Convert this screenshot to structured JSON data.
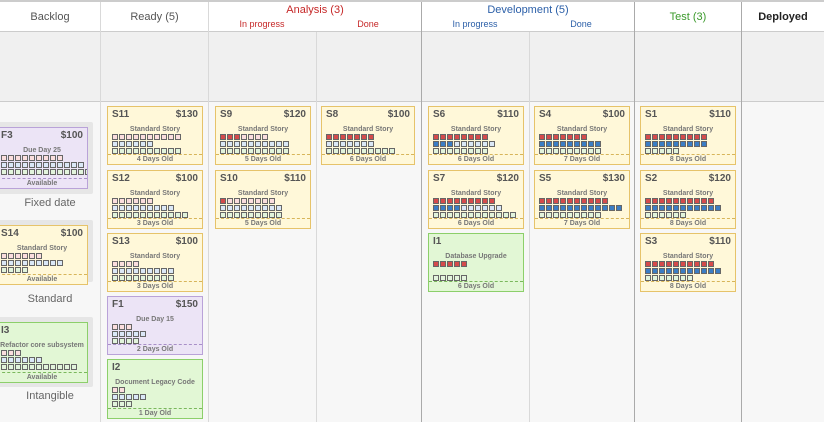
{
  "columns": {
    "backlog": "Backlog",
    "ready": "Ready (5)",
    "analysis": {
      "title": "Analysis (3)",
      "sub": [
        "In progress",
        "Done"
      ]
    },
    "development": {
      "title": "Development (5)",
      "sub": [
        "In progress",
        "Done"
      ]
    },
    "test": "Test (3)",
    "deployed": "Deployed"
  },
  "backlog_groups": [
    "Fixed date",
    "Standard",
    "Intangible"
  ],
  "colors": {
    "analysis": "#c62828",
    "development": "#2b5fa8",
    "test": "#3a9a2a",
    "red": "#d54b4b",
    "blue": "#3b7dc4",
    "green": "#5aac48"
  },
  "cards": {
    "F3": {
      "id": "F3",
      "price": "$100",
      "type": "Due Day 25",
      "footer": "Available",
      "color": "purple",
      "bars": [
        [
          9,
          0
        ],
        [
          12,
          0
        ],
        [
          13,
          0
        ]
      ]
    },
    "S14": {
      "id": "S14",
      "price": "$100",
      "type": "Standard Story",
      "footer": "Available",
      "color": "yellow",
      "bars": [
        [
          6,
          0
        ],
        [
          9,
          0
        ],
        [
          4,
          0
        ]
      ]
    },
    "I3": {
      "id": "I3",
      "type": "Refactor core subsystem",
      "footer": "Available",
      "color": "green",
      "bars": [
        [
          3,
          0
        ],
        [
          6,
          0
        ],
        [
          11,
          0
        ]
      ]
    },
    "S11": {
      "id": "S11",
      "price": "$130",
      "type": "Standard Story",
      "footer": "4 Days Old",
      "color": "yellow",
      "bars": [
        [
          10,
          0
        ],
        [
          6,
          0
        ],
        [
          10,
          0
        ]
      ]
    },
    "S12": {
      "id": "S12",
      "price": "$100",
      "type": "Standard Story",
      "footer": "3 Days Old",
      "color": "yellow",
      "bars": [
        [
          6,
          0
        ],
        [
          9,
          0
        ],
        [
          11,
          0
        ]
      ]
    },
    "S13": {
      "id": "S13",
      "price": "$100",
      "type": "Standard Story",
      "footer": "3 Days Old",
      "color": "yellow",
      "bars": [
        [
          4,
          0
        ],
        [
          9,
          0
        ],
        [
          9,
          0
        ]
      ]
    },
    "F1": {
      "id": "F1",
      "price": "$150",
      "type": "Due Day 15",
      "footer": "2 Days Old",
      "color": "purple",
      "bars": [
        [
          3,
          0
        ],
        [
          5,
          0
        ],
        [
          4,
          0
        ]
      ]
    },
    "I2": {
      "id": "I2",
      "type": "Document Legacy Code",
      "footer": "1 Day Old",
      "color": "green",
      "bars": [
        [
          2,
          0
        ],
        [
          5,
          0
        ],
        [
          3,
          0
        ]
      ]
    },
    "S9": {
      "id": "S9",
      "price": "$120",
      "type": "Standard Story",
      "footer": "5 Days Old",
      "color": "yellow",
      "bars": [
        [
          7,
          3
        ],
        [
          10,
          0
        ],
        [
          10,
          0
        ]
      ]
    },
    "S10": {
      "id": "S10",
      "price": "$110",
      "type": "Standard Story",
      "footer": "5 Days Old",
      "color": "yellow",
      "bars": [
        [
          8,
          1
        ],
        [
          9,
          0
        ],
        [
          9,
          0
        ]
      ]
    },
    "S8": {
      "id": "S8",
      "price": "$100",
      "type": "Standard Story",
      "footer": "6 Days Old",
      "color": "yellow",
      "bars": [
        [
          7,
          7
        ],
        [
          7,
          0
        ],
        [
          10,
          0
        ]
      ]
    },
    "S6": {
      "id": "S6",
      "price": "$110",
      "type": "Standard Story",
      "footer": "6 Days Old",
      "color": "yellow",
      "bars": [
        [
          8,
          8
        ],
        [
          9,
          3
        ],
        [
          8,
          0
        ]
      ]
    },
    "S7": {
      "id": "S7",
      "price": "$120",
      "type": "Standard Story",
      "footer": "6 Days Old",
      "color": "yellow",
      "bars": [
        [
          9,
          9
        ],
        [
          10,
          4
        ],
        [
          12,
          0
        ]
      ]
    },
    "I1": {
      "id": "I1",
      "type": "Database Upgrade",
      "footer": "6 Days Old",
      "color": "green",
      "bars": [
        [
          5,
          5
        ],
        [
          0,
          0
        ],
        [
          5,
          0
        ]
      ]
    },
    "S4": {
      "id": "S4",
      "price": "$100",
      "type": "Standard Story",
      "footer": "7 Days Old",
      "color": "yellow",
      "bars": [
        [
          7,
          7
        ],
        [
          9,
          9
        ],
        [
          9,
          0
        ]
      ]
    },
    "S5": {
      "id": "S5",
      "price": "$130",
      "type": "Standard Story",
      "footer": "7 Days Old",
      "color": "yellow",
      "bars": [
        [
          10,
          10
        ],
        [
          12,
          12
        ],
        [
          9,
          0
        ]
      ]
    },
    "S1": {
      "id": "S1",
      "price": "$110",
      "type": "Standard Story",
      "footer": "8 Days Old",
      "color": "yellow",
      "bars": [
        [
          9,
          9
        ],
        [
          9,
          9
        ],
        [
          5,
          0
        ]
      ]
    },
    "S2": {
      "id": "S2",
      "price": "$120",
      "type": "Standard Story",
      "footer": "8 Days Old",
      "color": "yellow",
      "bars": [
        [
          10,
          10
        ],
        [
          11,
          11
        ],
        [
          6,
          0
        ]
      ]
    },
    "S3": {
      "id": "S3",
      "price": "$110",
      "type": "Standard Story",
      "footer": "8 Days Old",
      "color": "yellow",
      "bars": [
        [
          10,
          10
        ],
        [
          11,
          11
        ],
        [
          7,
          0
        ]
      ]
    }
  }
}
